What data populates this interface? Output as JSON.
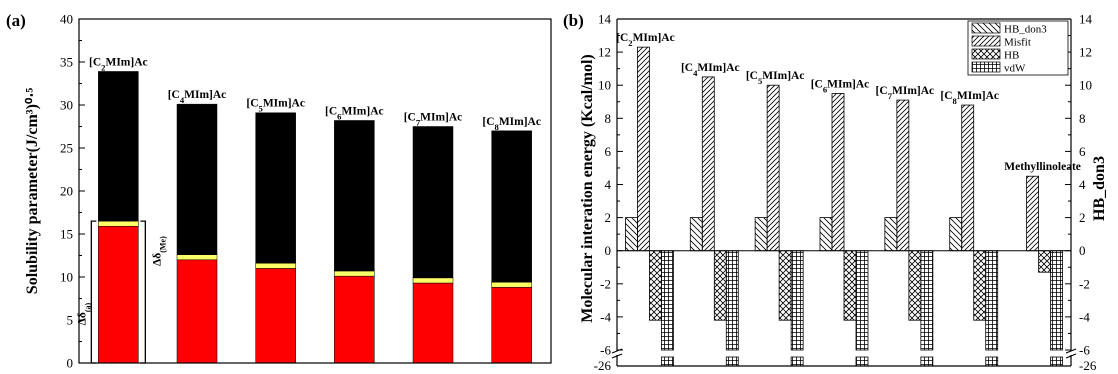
{
  "panel_a_label": "(a)",
  "panel_b_label": "(b)",
  "chart_data": [
    {
      "type": "bar",
      "stacked": true,
      "ylabel": "Solubility parameter(J/cm³)⁰⋅⁵",
      "ylim": [
        0,
        40
      ],
      "yticks": [
        0,
        5,
        10,
        15,
        20,
        25,
        30,
        35,
        40
      ],
      "categories": [
        "[C2MIm]Ac",
        "[C4MIm]Ac",
        "[C5MIm]Ac",
        "[C6MIm]Ac",
        "[C7MIm]Ac",
        "[C8MIm]Ac"
      ],
      "category_labels": [
        {
          "pre": "[C",
          "sub": "2",
          "post": "MIm]Ac"
        },
        {
          "pre": "[C",
          "sub": "4",
          "post": "MIm]Ac"
        },
        {
          "pre": "[C",
          "sub": "5",
          "post": "MIm]Ac"
        },
        {
          "pre": "[C",
          "sub": "6",
          "post": "MIm]Ac"
        },
        {
          "pre": "[C",
          "sub": "7",
          "post": "MIm]Ac"
        },
        {
          "pre": "[C",
          "sub": "8",
          "post": "MIm]Ac"
        }
      ],
      "series": [
        {
          "values": [
            15.9,
            12.0,
            11.0,
            10.1,
            9.3,
            8.8
          ],
          "color": "#ff0000"
        },
        {
          "values": [
            0.6,
            0.6,
            0.6,
            0.6,
            0.6,
            0.6
          ],
          "color": "#ffff66"
        },
        {
          "values": [
            17.4,
            17.5,
            17.5,
            17.5,
            17.6,
            17.6
          ],
          "color": "#000000"
        }
      ],
      "totals": [
        33.9,
        30.1,
        29.1,
        28.2,
        27.5,
        27.0
      ],
      "annotations": {
        "delta_a": {
          "base": "Δδ",
          "sub": "(a)"
        },
        "delta_me": {
          "base": "Δδ",
          "sub": "(Me)"
        }
      },
      "grid": false
    },
    {
      "type": "bar",
      "ylabel": "Molecular interation energy (Kcal/mol)",
      "y2label": "HB_don3",
      "ylim": [
        -6,
        14
      ],
      "broken_axis_lower": -26,
      "yticks": [
        -6,
        -4,
        -2,
        0,
        2,
        4,
        6,
        8,
        10,
        12,
        14
      ],
      "categories": [
        "[C2MIm]Ac",
        "[C4MIm]Ac",
        "[C5MIm]Ac",
        "[C6MIm]Ac",
        "[C7MIm]Ac",
        "[C8MIm]Ac",
        "Methyllinoleate"
      ],
      "category_labels": [
        {
          "pre": "[C",
          "sub": "2",
          "post": "MIm]Ac"
        },
        {
          "pre": "[C",
          "sub": "4",
          "post": "MIm]Ac"
        },
        {
          "pre": "[C",
          "sub": "5",
          "post": "MIm]Ac"
        },
        {
          "pre": "[C",
          "sub": "6",
          "post": "MIm]Ac"
        },
        {
          "pre": "[C",
          "sub": "7",
          "post": "MIm]Ac"
        },
        {
          "pre": "[C",
          "sub": "8",
          "post": "MIm]Ac"
        },
        {
          "pre": "Methyllinoleate",
          "sub": "",
          "post": ""
        }
      ],
      "series": [
        {
          "name": "HB_don3",
          "pattern": "back-diagonal",
          "values": [
            2.0,
            2.0,
            2.0,
            2.0,
            2.0,
            2.0,
            0
          ]
        },
        {
          "name": "Misfit",
          "pattern": "forward-diagonal",
          "values": [
            12.3,
            10.5,
            10.0,
            9.5,
            9.1,
            8.8,
            4.5
          ]
        },
        {
          "name": "HB",
          "pattern": "crosshatch",
          "values": [
            -4.2,
            -4.2,
            -4.2,
            -4.2,
            -4.2,
            -4.2,
            -1.3
          ]
        },
        {
          "name": "vdW",
          "pattern": "grid",
          "values": [
            -26,
            -26,
            -26,
            -26,
            -26,
            -26,
            -26
          ]
        }
      ],
      "legend_position": "top-right",
      "grid": false
    }
  ]
}
